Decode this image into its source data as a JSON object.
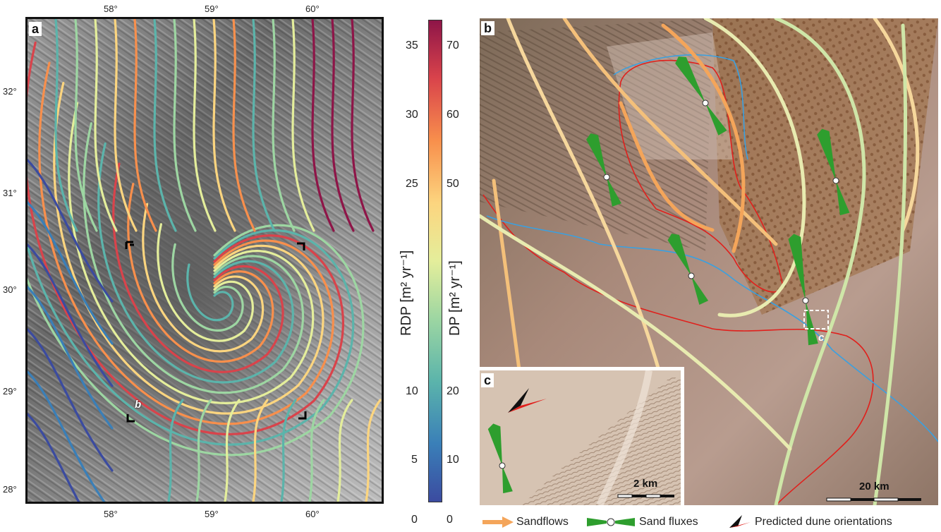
{
  "panel_a": {
    "letter": "a",
    "lon_ticks": [
      "58°",
      "59°",
      "60°"
    ],
    "lat_ticks": [
      "32°",
      "31°",
      "30°",
      "29°",
      "28°"
    ],
    "marker_label": "b"
  },
  "colorbar": {
    "rdp_ticks": [
      "35",
      "30",
      "25",
      "10",
      "5",
      "0"
    ],
    "dp_ticks": [
      "70",
      "60",
      "50",
      "20",
      "10",
      "0"
    ],
    "rdp_title": "RDP [m² yr⁻¹]",
    "dp_title": "DP [m² yr⁻¹]",
    "colors": [
      "#3b4ba0",
      "#5bb4ab",
      "#e4ee9b",
      "#f88f4c",
      "#8e1548"
    ]
  },
  "panel_b": {
    "letter": "b",
    "marker_label": "c",
    "scale_label": "20 km"
  },
  "panel_c": {
    "letter": "c",
    "scale_label": "2 km"
  },
  "legend": {
    "sandflows": "Sandflows",
    "sand_fluxes": "Sand fluxes",
    "predicted": "Predicted dune orientations",
    "sandflow_color": "#f4a55a",
    "flux_color": "#2e9e2e",
    "orientation_color": "#e0201c"
  }
}
